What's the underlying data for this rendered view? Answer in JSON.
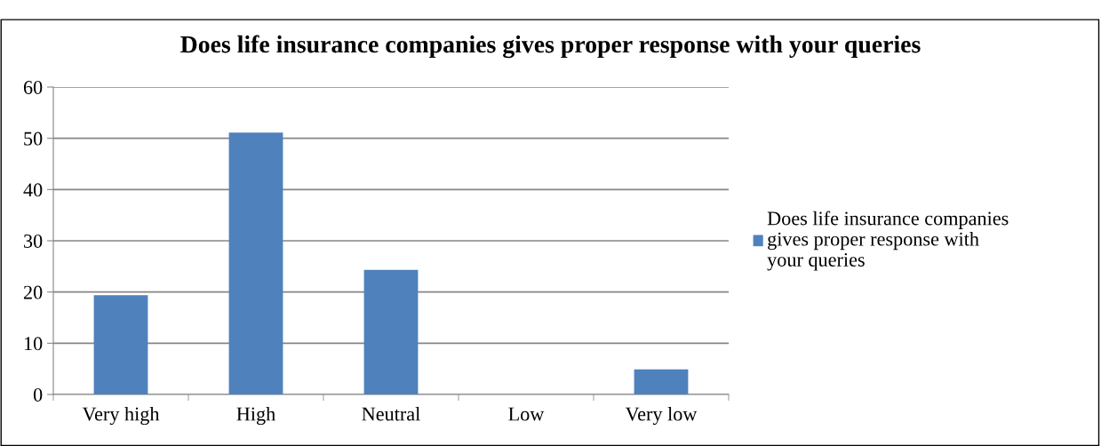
{
  "chart_data": {
    "type": "bar",
    "title": "Does life insurance companies gives proper response with your queries",
    "categories": [
      "Very high",
      "High",
      "Neutral",
      "Low",
      "Very low"
    ],
    "series": [
      {
        "name": "Does life insurance companies gives proper response with your queries",
        "color": "#4f81bd",
        "values": [
          19.4,
          51.1,
          24.3,
          0,
          4.9
        ]
      }
    ],
    "ylim": [
      0,
      60
    ],
    "yticks": [
      0,
      10,
      20,
      30,
      40,
      50,
      60
    ],
    "grid": "y",
    "legend": "right"
  }
}
